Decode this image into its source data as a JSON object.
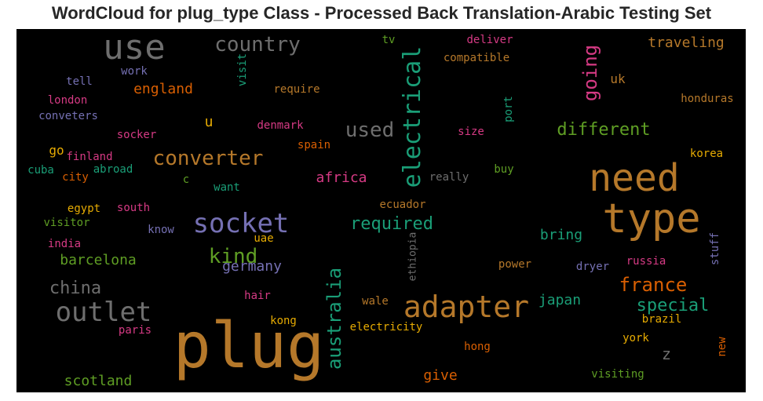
{
  "title": "WordCloud for plug_type Class - Processed Back Translation-Arabic Testing Set",
  "colors": {
    "orange": "#b5782a",
    "gray": "#6e6e6e",
    "green": "#5f9e24",
    "teal": "#1a9e77",
    "pink": "#d63a84",
    "purple": "#7570b3",
    "dark_orange": "#d95f02",
    "yellow": "#e6ab02"
  },
  "words": [
    {
      "text": "plug",
      "color": "orange"
    },
    {
      "text": "need",
      "color": "orange"
    },
    {
      "text": "type",
      "color": "orange"
    },
    {
      "text": "adapter",
      "color": "orange"
    },
    {
      "text": "use",
      "color": "gray"
    },
    {
      "text": "socket",
      "color": "purple"
    },
    {
      "text": "outlet",
      "color": "gray"
    },
    {
      "text": "electrical",
      "color": "teal"
    },
    {
      "text": "country",
      "color": "gray"
    },
    {
      "text": "converter",
      "color": "orange"
    },
    {
      "text": "used",
      "color": "gray"
    },
    {
      "text": "australia",
      "color": "teal"
    },
    {
      "text": "kind",
      "color": "green"
    },
    {
      "text": "different",
      "color": "green"
    },
    {
      "text": "france",
      "color": "dark_orange"
    },
    {
      "text": "going",
      "color": "pink"
    },
    {
      "text": "china",
      "color": "gray"
    },
    {
      "text": "special",
      "color": "teal"
    },
    {
      "text": "required",
      "color": "teal"
    },
    {
      "text": "england",
      "color": "dark_orange"
    },
    {
      "text": "germany",
      "color": "purple"
    },
    {
      "text": "barcelona",
      "color": "green"
    },
    {
      "text": "scotland",
      "color": "green"
    },
    {
      "text": "africa",
      "color": "pink"
    },
    {
      "text": "japan",
      "color": "teal"
    },
    {
      "text": "bring",
      "color": "teal"
    },
    {
      "text": "traveling",
      "color": "orange"
    },
    {
      "text": "give",
      "color": "dark_orange"
    },
    {
      "text": "uk",
      "color": "orange"
    },
    {
      "text": "u",
      "color": "yellow"
    },
    {
      "text": "z",
      "color": "gray"
    },
    {
      "text": "go",
      "color": "yellow"
    },
    {
      "text": "electricity",
      "color": "yellow"
    },
    {
      "text": "hong",
      "color": "dark_orange"
    },
    {
      "text": "kong",
      "color": "yellow"
    },
    {
      "text": "york",
      "color": "yellow"
    },
    {
      "text": "brazil",
      "color": "yellow"
    },
    {
      "text": "russia",
      "color": "pink"
    },
    {
      "text": "dryer",
      "color": "purple"
    },
    {
      "text": "power",
      "color": "orange"
    },
    {
      "text": "wale",
      "color": "orange"
    },
    {
      "text": "hair",
      "color": "pink"
    },
    {
      "text": "paris",
      "color": "pink"
    },
    {
      "text": "visiting",
      "color": "green"
    },
    {
      "text": "new",
      "color": "dark_orange"
    },
    {
      "text": "stuff",
      "color": "purple"
    },
    {
      "text": "korea",
      "color": "yellow"
    },
    {
      "text": "honduras",
      "color": "orange"
    },
    {
      "text": "port",
      "color": "teal"
    },
    {
      "text": "buy",
      "color": "green"
    },
    {
      "text": "really",
      "color": "gray"
    },
    {
      "text": "size",
      "color": "pink"
    },
    {
      "text": "ecuador",
      "color": "orange"
    },
    {
      "text": "ethiopia",
      "color": "gray"
    },
    {
      "text": "uae",
      "color": "yellow"
    },
    {
      "text": "spain",
      "color": "dark_orange"
    },
    {
      "text": "denmark",
      "color": "pink"
    },
    {
      "text": "require",
      "color": "orange"
    },
    {
      "text": "visit",
      "color": "teal"
    },
    {
      "text": "tv",
      "color": "green"
    },
    {
      "text": "deliver",
      "color": "pink"
    },
    {
      "text": "compatible",
      "color": "orange"
    },
    {
      "text": "work",
      "color": "purple"
    },
    {
      "text": "tell",
      "color": "purple"
    },
    {
      "text": "london",
      "color": "pink"
    },
    {
      "text": "conveters",
      "color": "purple"
    },
    {
      "text": "socker",
      "color": "pink"
    },
    {
      "text": "finland",
      "color": "pink"
    },
    {
      "text": "cuba",
      "color": "teal"
    },
    {
      "text": "city",
      "color": "dark_orange"
    },
    {
      "text": "abroad",
      "color": "teal"
    },
    {
      "text": "c",
      "color": "green"
    },
    {
      "text": "want",
      "color": "teal"
    },
    {
      "text": "egypt",
      "color": "yellow"
    },
    {
      "text": "south",
      "color": "pink"
    },
    {
      "text": "visitor",
      "color": "green"
    },
    {
      "text": "know",
      "color": "purple"
    },
    {
      "text": "india",
      "color": "pink"
    }
  ]
}
